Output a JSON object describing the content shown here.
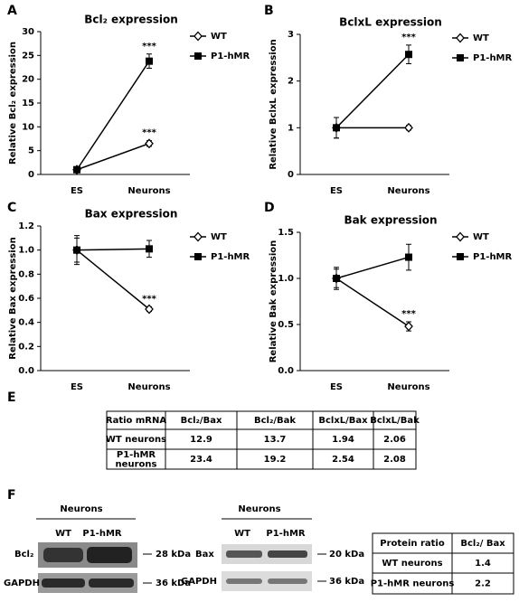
{
  "chart_data": [
    {
      "type": "line",
      "panel": "A",
      "title": "Bcl₂ expression",
      "y_label": "Relative Bcl₂ expression",
      "categories": [
        "ES",
        "Neurons"
      ],
      "ylim": [
        0,
        30
      ],
      "yticks": [
        0,
        5,
        10,
        15,
        20,
        25,
        30
      ],
      "series": [
        {
          "name": "WT",
          "color": "#000000",
          "marker": "diamond",
          "values": [
            1,
            6.5
          ],
          "errors": [
            0.5,
            0.6
          ]
        },
        {
          "name": "P1-hMR",
          "color": "#000000",
          "marker": "square",
          "values": [
            1,
            23.8
          ],
          "errors": [
            0.5,
            1.5
          ]
        }
      ],
      "annotations": [
        "***",
        "***"
      ]
    },
    {
      "type": "line",
      "panel": "B",
      "title": "BclxL expression",
      "y_label": "Relative BclxL expression",
      "categories": [
        "ES",
        "Neurons"
      ],
      "ylim": [
        0,
        3
      ],
      "yticks": [
        0,
        1,
        2,
        3
      ],
      "series": [
        {
          "name": "WT",
          "color": "#000000",
          "marker": "diamond",
          "values": [
            1,
            1
          ],
          "errors": [
            0.22,
            0.05
          ]
        },
        {
          "name": "P1-hMR",
          "color": "#000000",
          "marker": "square",
          "values": [
            1,
            2.57
          ],
          "errors": [
            0.22,
            0.2
          ]
        }
      ],
      "annotations": [
        "***"
      ]
    },
    {
      "type": "line",
      "panel": "C",
      "title": "Bax expression",
      "y_label": "Relative Bax expression",
      "categories": [
        "ES",
        "Neurons"
      ],
      "ylim": [
        0,
        1.2
      ],
      "yticks": [
        {
          "value": 0,
          "label": "0.0"
        },
        {
          "value": 0.2,
          "label": "0.2"
        },
        {
          "value": 0.4,
          "label": "0.4"
        },
        {
          "value": 0.6,
          "label": "0.6"
        },
        {
          "value": 0.8,
          "label": "0.8"
        },
        {
          "value": 1,
          "label": "1.0"
        },
        {
          "value": 1.2,
          "label": "1.2"
        }
      ],
      "series": [
        {
          "name": "WT",
          "color": "#000000",
          "marker": "diamond",
          "values": [
            1,
            0.51
          ],
          "errors": [
            0.12,
            0.02
          ]
        },
        {
          "name": "P1-hMR",
          "color": "#000000",
          "marker": "square",
          "values": [
            1,
            1.01
          ],
          "errors": [
            0.1,
            0.07
          ]
        }
      ],
      "annotations": [
        "***"
      ]
    },
    {
      "type": "line",
      "panel": "D",
      "title": "Bak expression",
      "y_label": "Relative Bak expression",
      "categories": [
        "ES",
        "Neurons"
      ],
      "ylim": [
        0,
        1.5
      ],
      "yticks": [
        {
          "value": 0,
          "label": "0.0"
        },
        {
          "value": 0.5,
          "label": "0.5"
        },
        {
          "value": 1,
          "label": "1.0"
        },
        {
          "value": 1.5,
          "label": "1.5"
        }
      ],
      "series": [
        {
          "name": "WT",
          "color": "#000000",
          "marker": "diamond",
          "values": [
            1,
            0.48
          ],
          "errors": [
            0.12,
            0.05
          ]
        },
        {
          "name": "P1-hMR",
          "color": "#000000",
          "marker": "square",
          "values": [
            1,
            1.23
          ],
          "errors": [
            0.1,
            0.14
          ]
        }
      ],
      "annotations": [
        "***"
      ]
    }
  ],
  "table_e": {
    "panel": "E",
    "header": [
      "Ratio mRNA",
      "Bcl₂/Bax",
      "Bcl₂/Bak",
      "BclxL/Bax",
      "BclxL/Bak"
    ],
    "rows": [
      [
        "WT neurons",
        12.9,
        13.7,
        1.94,
        2.06
      ],
      [
        "P1-hMR neurons",
        23.4,
        19.2,
        2.54,
        2.08
      ]
    ]
  },
  "panel_f": {
    "panel": "F",
    "blot_1": {
      "title": "Neurons",
      "lanes": [
        "WT",
        "P1-hMR"
      ],
      "proteins": [
        "Bcl₂",
        "GAPDH"
      ],
      "sizes": [
        "28 kDa",
        "36 kDa"
      ]
    },
    "blot_2": {
      "title": "Neurons",
      "lanes": [
        "WT",
        "P1-hMR"
      ],
      "proteins": [
        "Bax",
        "GAPDH"
      ],
      "sizes": [
        "20 kDa",
        "36 kDa"
      ]
    },
    "table": {
      "header": [
        "Protein ratio",
        "Bcl₂/ Bax"
      ],
      "rows": [
        [
          "WT neurons",
          1.4
        ],
        [
          "P1-hMR neurons",
          2.2
        ]
      ]
    }
  }
}
